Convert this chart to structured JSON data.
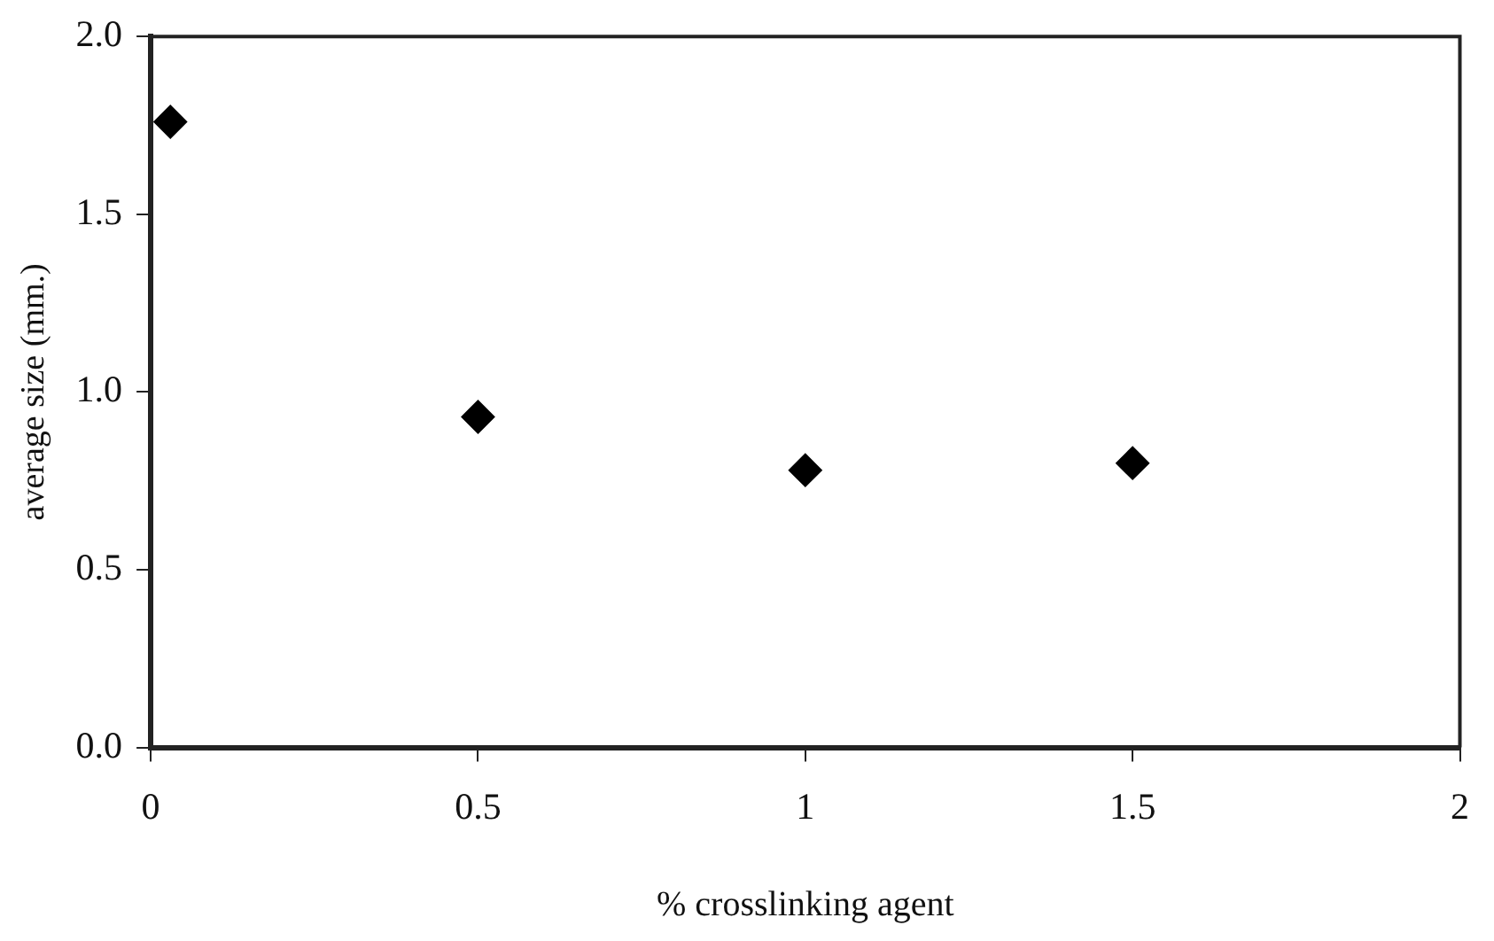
{
  "chart_data": {
    "type": "scatter",
    "xlabel": "% crosslinking agent",
    "ylabel": "average size (mm.)",
    "x": [
      0.03,
      0.5,
      1.0,
      1.5
    ],
    "series": [
      {
        "color": "#000000",
        "values": [
          1.76,
          0.93,
          0.78,
          0.8
        ]
      }
    ],
    "xlim": [
      0,
      2
    ],
    "xticks": [
      0,
      0.5,
      1,
      1.5,
      2
    ],
    "ylim": [
      0,
      2
    ],
    "yticks": [
      {
        "value": 0,
        "label": "0.0"
      },
      {
        "value": 0.5,
        "label": "0.5"
      },
      {
        "value": 1,
        "label": "1.0"
      },
      {
        "value": 1.5,
        "label": "1.5"
      },
      {
        "value": 2,
        "label": "2.0"
      }
    ],
    "marker": "diamond",
    "grid": false,
    "legend": false
  }
}
